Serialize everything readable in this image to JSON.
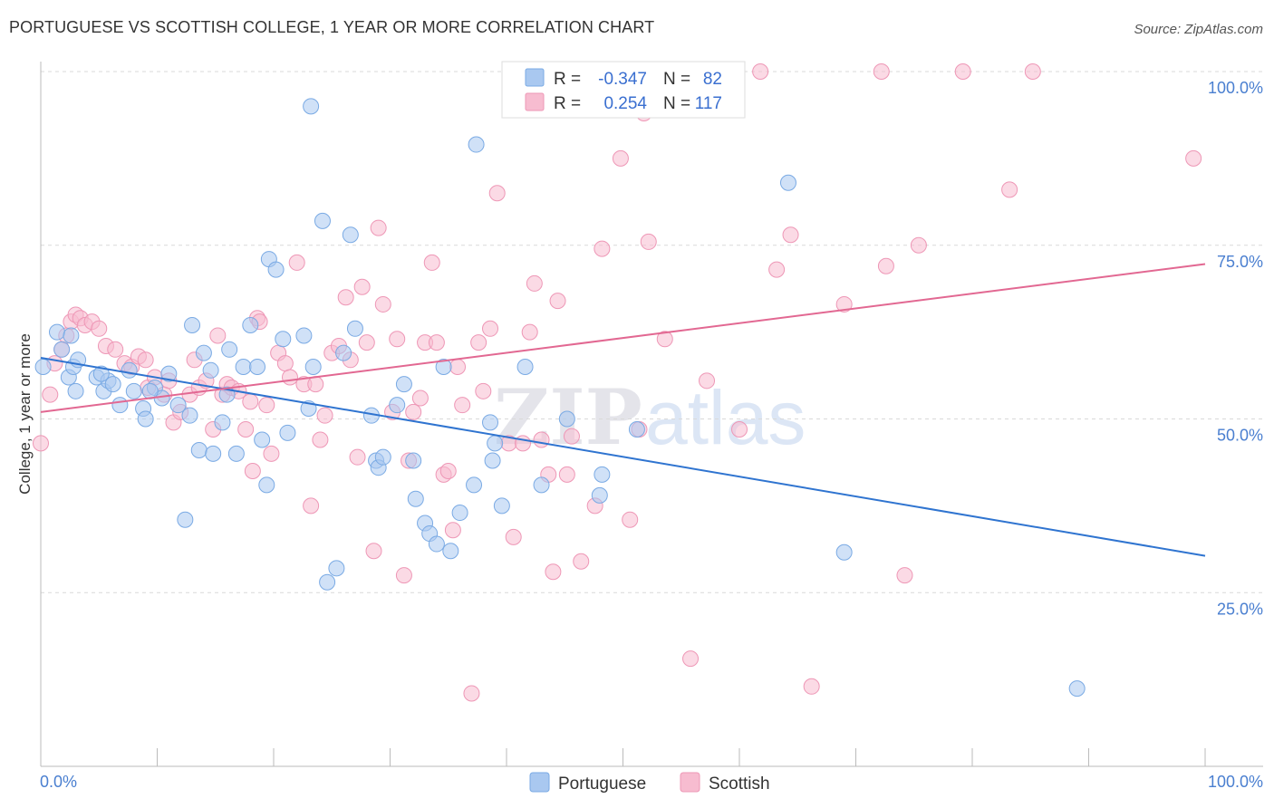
{
  "title": "PORTUGUESE VS SCOTTISH COLLEGE, 1 YEAR OR MORE CORRELATION CHART",
  "source": "Source: ZipAtlas.com",
  "colors": {
    "portuguese_fill": "#a9c8f0",
    "portuguese_stroke": "#7aaae4",
    "portuguese_line": "#2f74d0",
    "scottish_fill": "#f7bcd0",
    "scottish_stroke": "#ee97b6",
    "scottish_line": "#e26892",
    "tick_text": "#4a7fd0",
    "grid": "#d9d9d9"
  },
  "legend": {
    "rows": [
      {
        "r_label": "R = ",
        "r_value": "-0.347",
        "n_label": "N = ",
        "n_value": "82"
      },
      {
        "r_label": "R = ",
        "r_value": "0.254",
        "n_label": "N = ",
        "n_value": "117"
      }
    ]
  },
  "bottom_legend": [
    "Portuguese",
    "Scottish"
  ],
  "watermark": {
    "zip": "ZIP",
    "atlas": "atlas"
  },
  "chart_data": {
    "type": "scatter",
    "title": "PORTUGUESE VS SCOTTISH COLLEGE, 1 YEAR OR MORE CORRELATION CHART",
    "xlabel": "",
    "ylabel": "College, 1 year or more",
    "xlim": [
      0,
      100
    ],
    "ylim": [
      0,
      100
    ],
    "x_tick_labels": [
      "0.0%",
      "100.0%"
    ],
    "y_tick_labels": [
      "100.0%",
      "75.0%",
      "50.0%",
      "25.0%"
    ],
    "y_gridlines": [
      25,
      50,
      75,
      100
    ],
    "series": [
      {
        "name": "Portuguese",
        "r": -0.347,
        "n": 82,
        "trend": {
          "x": [
            0,
            100
          ],
          "y": [
            58.8,
            30.3
          ]
        },
        "points": [
          [
            0.2,
            57.5
          ],
          [
            1.4,
            62.5
          ],
          [
            1.8,
            60.0
          ],
          [
            2.4,
            56.0
          ],
          [
            2.8,
            57.5
          ],
          [
            3.0,
            54.0
          ],
          [
            3.2,
            58.5
          ],
          [
            4.8,
            56.0
          ],
          [
            5.4,
            54.0
          ],
          [
            5.8,
            55.5
          ],
          [
            6.2,
            55.0
          ],
          [
            6.8,
            52.0
          ],
          [
            7.6,
            57.0
          ],
          [
            8.0,
            54.0
          ],
          [
            8.8,
            51.5
          ],
          [
            9.0,
            50.0
          ],
          [
            9.8,
            54.5
          ],
          [
            10.4,
            53.0
          ],
          [
            11.0,
            56.5
          ],
          [
            11.8,
            52.0
          ],
          [
            12.4,
            35.5
          ],
          [
            12.8,
            50.5
          ],
          [
            13.0,
            63.5
          ],
          [
            13.6,
            45.5
          ],
          [
            14.0,
            59.5
          ],
          [
            14.6,
            57.0
          ],
          [
            14.8,
            45.0
          ],
          [
            15.6,
            49.5
          ],
          [
            16.0,
            53.5
          ],
          [
            16.2,
            60.0
          ],
          [
            16.8,
            45.0
          ],
          [
            17.4,
            57.5
          ],
          [
            18.0,
            63.5
          ],
          [
            18.6,
            57.5
          ],
          [
            19.0,
            47.0
          ],
          [
            19.4,
            40.5
          ],
          [
            19.6,
            73.0
          ],
          [
            20.2,
            71.5
          ],
          [
            20.8,
            61.5
          ],
          [
            21.2,
            48.0
          ],
          [
            22.6,
            62.0
          ],
          [
            23.0,
            51.5
          ],
          [
            23.2,
            95.0
          ],
          [
            23.4,
            57.5
          ],
          [
            24.2,
            78.5
          ],
          [
            24.6,
            26.5
          ],
          [
            25.4,
            28.5
          ],
          [
            26.0,
            59.5
          ],
          [
            26.6,
            76.5
          ],
          [
            27.0,
            63.0
          ],
          [
            28.4,
            50.5
          ],
          [
            28.8,
            44.0
          ],
          [
            29.0,
            43.0
          ],
          [
            29.4,
            44.5
          ],
          [
            30.6,
            52.0
          ],
          [
            31.2,
            55.0
          ],
          [
            32.0,
            44.0
          ],
          [
            32.2,
            38.5
          ],
          [
            33.0,
            35.0
          ],
          [
            33.4,
            33.5
          ],
          [
            34.0,
            32.0
          ],
          [
            34.6,
            57.5
          ],
          [
            35.2,
            31.0
          ],
          [
            36.0,
            36.5
          ],
          [
            37.4,
            89.5
          ],
          [
            37.2,
            40.5
          ],
          [
            38.6,
            49.5
          ],
          [
            38.8,
            44.0
          ],
          [
            39.0,
            46.5
          ],
          [
            39.6,
            37.5
          ],
          [
            41.6,
            57.5
          ],
          [
            43.0,
            40.5
          ],
          [
            45.2,
            50.0
          ],
          [
            48.0,
            39.0
          ],
          [
            48.2,
            42.0
          ],
          [
            51.2,
            48.5
          ],
          [
            64.2,
            84.0
          ],
          [
            69.0,
            30.8
          ],
          [
            89.0,
            11.2
          ],
          [
            9.4,
            54.0
          ],
          [
            5.2,
            56.5
          ],
          [
            2.6,
            62.0
          ]
        ]
      },
      {
        "name": "Scottish",
        "r": 0.254,
        "n": 117,
        "trend": {
          "x": [
            0,
            100
          ],
          "y": [
            51.0,
            72.3
          ]
        },
        "points": [
          [
            0.0,
            46.5
          ],
          [
            0.8,
            53.5
          ],
          [
            1.2,
            58.0
          ],
          [
            1.8,
            60.0
          ],
          [
            2.2,
            62.0
          ],
          [
            2.6,
            64.0
          ],
          [
            3.0,
            65.0
          ],
          [
            3.4,
            64.5
          ],
          [
            3.8,
            63.5
          ],
          [
            4.4,
            64.0
          ],
          [
            5.0,
            63.0
          ],
          [
            5.6,
            60.5
          ],
          [
            6.4,
            60.0
          ],
          [
            7.2,
            58.0
          ],
          [
            7.8,
            57.5
          ],
          [
            8.4,
            59.0
          ],
          [
            9.0,
            58.5
          ],
          [
            9.2,
            54.5
          ],
          [
            9.8,
            56.0
          ],
          [
            10.6,
            53.5
          ],
          [
            11.0,
            55.5
          ],
          [
            11.4,
            49.5
          ],
          [
            12.0,
            51.0
          ],
          [
            12.8,
            53.5
          ],
          [
            13.2,
            58.5
          ],
          [
            13.6,
            54.5
          ],
          [
            14.2,
            55.5
          ],
          [
            14.8,
            48.5
          ],
          [
            15.2,
            62.0
          ],
          [
            15.6,
            53.5
          ],
          [
            16.0,
            55.0
          ],
          [
            16.4,
            54.5
          ],
          [
            17.0,
            54.0
          ],
          [
            17.6,
            48.5
          ],
          [
            18.0,
            52.5
          ],
          [
            18.2,
            42.5
          ],
          [
            18.6,
            64.5
          ],
          [
            18.8,
            64.0
          ],
          [
            19.4,
            52.0
          ],
          [
            19.8,
            45.0
          ],
          [
            20.4,
            59.5
          ],
          [
            21.0,
            58.0
          ],
          [
            21.4,
            56.0
          ],
          [
            22.0,
            72.5
          ],
          [
            22.6,
            55.0
          ],
          [
            23.2,
            37.5
          ],
          [
            23.6,
            55.0
          ],
          [
            24.0,
            47.0
          ],
          [
            24.4,
            50.5
          ],
          [
            25.0,
            59.5
          ],
          [
            25.6,
            60.5
          ],
          [
            26.2,
            67.5
          ],
          [
            26.6,
            58.5
          ],
          [
            27.2,
            44.5
          ],
          [
            27.6,
            69.0
          ],
          [
            28.0,
            61.0
          ],
          [
            28.6,
            31.0
          ],
          [
            29.0,
            77.5
          ],
          [
            29.4,
            66.5
          ],
          [
            30.2,
            51.0
          ],
          [
            30.6,
            61.5
          ],
          [
            31.2,
            27.5
          ],
          [
            31.6,
            44.0
          ],
          [
            32.0,
            51.0
          ],
          [
            32.6,
            53.0
          ],
          [
            33.0,
            61.0
          ],
          [
            33.6,
            72.5
          ],
          [
            34.0,
            61.0
          ],
          [
            34.6,
            42.0
          ],
          [
            35.0,
            42.5
          ],
          [
            35.4,
            34.0
          ],
          [
            35.8,
            57.5
          ],
          [
            36.2,
            52.0
          ],
          [
            37.0,
            10.5
          ],
          [
            37.6,
            61.0
          ],
          [
            38.0,
            54.0
          ],
          [
            38.6,
            63.0
          ],
          [
            39.2,
            82.5
          ],
          [
            40.2,
            46.5
          ],
          [
            40.6,
            33.0
          ],
          [
            41.0,
            94.5
          ],
          [
            41.4,
            46.5
          ],
          [
            42.0,
            62.5
          ],
          [
            42.4,
            69.5
          ],
          [
            43.0,
            47.0
          ],
          [
            43.6,
            42.0
          ],
          [
            44.0,
            28.0
          ],
          [
            44.4,
            67.0
          ],
          [
            45.2,
            42.0
          ],
          [
            46.4,
            29.5
          ],
          [
            47.6,
            37.5
          ],
          [
            48.2,
            74.5
          ],
          [
            49.8,
            87.5
          ],
          [
            50.6,
            35.5
          ],
          [
            51.4,
            48.5
          ],
          [
            51.8,
            94.0
          ],
          [
            52.2,
            75.5
          ],
          [
            53.6,
            61.5
          ],
          [
            55.8,
            15.5
          ],
          [
            57.2,
            55.5
          ],
          [
            59.2,
            100.0
          ],
          [
            59.6,
            100.0
          ],
          [
            61.8,
            100.0
          ],
          [
            64.4,
            76.5
          ],
          [
            66.2,
            11.5
          ],
          [
            69.0,
            66.5
          ],
          [
            72.2,
            100.0
          ],
          [
            72.6,
            72.0
          ],
          [
            74.2,
            27.5
          ],
          [
            75.4,
            75.0
          ],
          [
            79.2,
            100.0
          ],
          [
            83.2,
            83.0
          ],
          [
            85.2,
            100.0
          ],
          [
            99.0,
            87.5
          ],
          [
            63.2,
            71.5
          ],
          [
            60.0,
            48.5
          ],
          [
            45.6,
            47.5
          ]
        ]
      }
    ]
  }
}
